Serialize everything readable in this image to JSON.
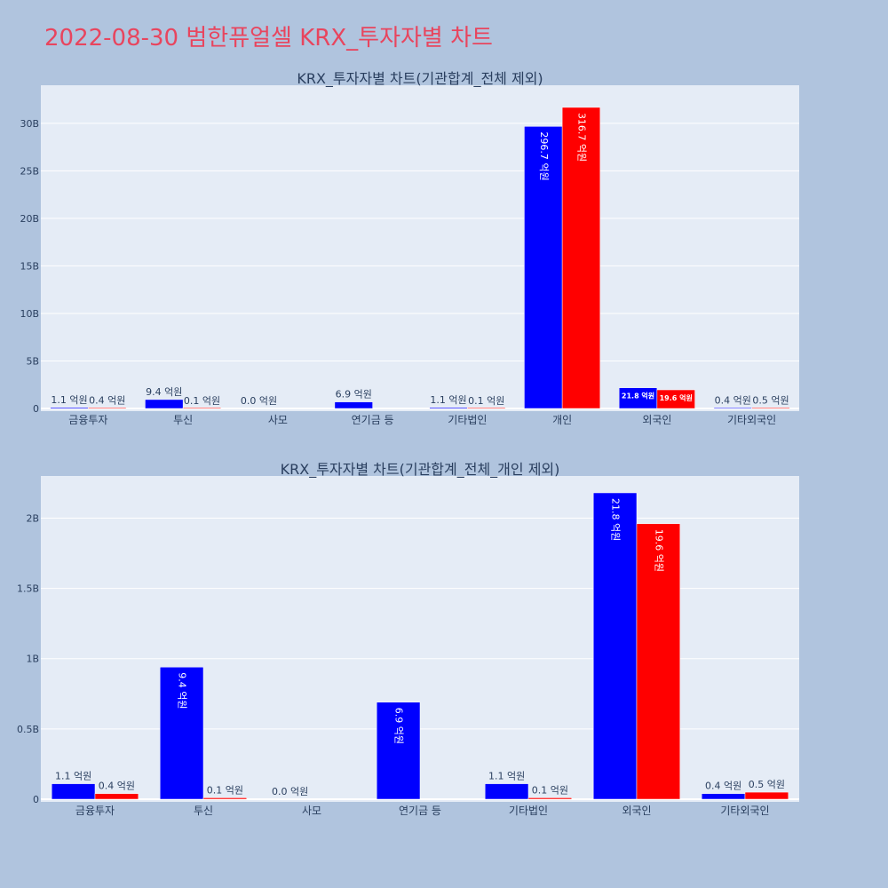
{
  "title": "2022-08-30 범한퓨얼셀 KRX_투자자별 차트",
  "colors": {
    "buy": "#0000ff",
    "sell": "#ff0000",
    "plot_bg": "#e5ecf6",
    "page_bg": "#b0c4de",
    "title": "#e8455e"
  },
  "chart_data": [
    {
      "type": "bar",
      "title": "KRX_투자자별 차트(기관합계_전체 제외)",
      "categories": [
        "금융투자",
        "투신",
        "사모",
        "연기금 등",
        "기타법인",
        "개인",
        "외국인",
        "기타외국인"
      ],
      "ylim": [
        0,
        34000000000
      ],
      "yticks": [
        0,
        5000000000,
        10000000000,
        15000000000,
        20000000000,
        25000000000,
        30000000000
      ],
      "ytick_labels": [
        "0",
        "5B",
        "10B",
        "15B",
        "20B",
        "25B",
        "30B"
      ],
      "grid": true,
      "series": [
        {
          "color": "#0000ff",
          "values": [
            110000000,
            940000000,
            0,
            690000000,
            110000000,
            29670000000,
            2180000000,
            40000000
          ],
          "labels": [
            "1.1 억원",
            "9.4 억원",
            "0.0 억원",
            "6.9 억원",
            "1.1 억원",
            "296.7 억원",
            "21.8 억원",
            "0.4 억원"
          ]
        },
        {
          "color": "#ff0000",
          "values": [
            40000000,
            10000000,
            null,
            null,
            10000000,
            31670000000,
            1960000000,
            50000000
          ],
          "labels": [
            "0.4 억원",
            "0.1 억원",
            "",
            "",
            "0.1 억원",
            "316.7 억원",
            "19.6 억원",
            "0.5 억원"
          ]
        }
      ]
    },
    {
      "type": "bar",
      "title": "KRX_투자자별 차트(기관합계_전체_개인 제외)",
      "categories": [
        "금융투자",
        "투신",
        "사모",
        "연기금 등",
        "기타법인",
        "외국인",
        "기타외국인"
      ],
      "ylim": [
        0,
        2300000000
      ],
      "yticks": [
        0,
        500000000,
        1000000000,
        1500000000,
        2000000000
      ],
      "ytick_labels": [
        "0",
        "0.5B",
        "1B",
        "1.5B",
        "2B"
      ],
      "grid": true,
      "series": [
        {
          "color": "#0000ff",
          "values": [
            110000000,
            940000000,
            0,
            690000000,
            110000000,
            2180000000,
            40000000
          ],
          "labels": [
            "1.1 억원",
            "9.4 억원",
            "0.0 억원",
            "6.9 억원",
            "1.1 억원",
            "21.8 억원",
            "0.4 억원"
          ]
        },
        {
          "color": "#ff0000",
          "values": [
            40000000,
            10000000,
            null,
            null,
            10000000,
            1960000000,
            50000000
          ],
          "labels": [
            "0.4 억원",
            "0.1 억원",
            "",
            "",
            "0.1 억원",
            "19.6 억원",
            "0.5 억원"
          ]
        }
      ]
    }
  ]
}
